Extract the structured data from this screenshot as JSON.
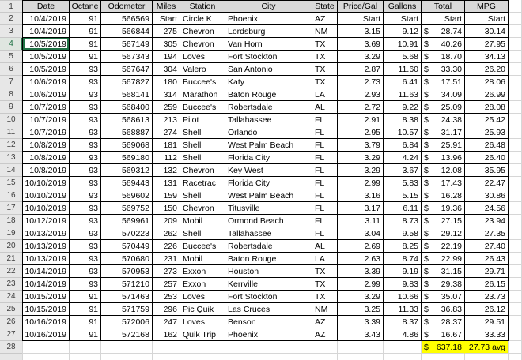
{
  "spreadsheet": {
    "selected": {
      "row": 4,
      "column": "date"
    },
    "visible_row_count": 28,
    "colors": {
      "highlight_fill": "#FFFF00",
      "selection_green": "#217346",
      "header_fill": "#D9D9D9",
      "chrome_fill": "#E7E7E7",
      "gridline": "#D6D6D6",
      "table_border": "#000000"
    },
    "row_numbers": [
      1,
      2,
      3,
      4,
      5,
      6,
      7,
      8,
      9,
      10,
      11,
      12,
      13,
      14,
      15,
      16,
      17,
      18,
      19,
      20,
      21,
      22,
      23,
      24,
      25,
      26,
      27,
      28
    ],
    "columns": [
      {
        "key": "date",
        "label": "Date"
      },
      {
        "key": "octane",
        "label": "Octane"
      },
      {
        "key": "odometer",
        "label": "Odometer"
      },
      {
        "key": "miles",
        "label": "Miles"
      },
      {
        "key": "station",
        "label": "Station"
      },
      {
        "key": "city",
        "label": "City"
      },
      {
        "key": "state",
        "label": "State"
      },
      {
        "key": "price_gal",
        "label": "Price/Gal"
      },
      {
        "key": "gallons",
        "label": "Gallons"
      },
      {
        "key": "total",
        "label": "Total"
      },
      {
        "key": "mpg",
        "label": "MPG"
      }
    ],
    "rows": [
      {
        "date": "10/4/2019",
        "octane": "91",
        "odometer": "566569",
        "miles": "Start",
        "station": "Circle K",
        "city": "Phoenix",
        "state": "AZ",
        "price_gal": "Start",
        "gallons": "Start",
        "currency": "",
        "total": "Start",
        "mpg": "Start"
      },
      {
        "date": "10/4/2019",
        "octane": "91",
        "odometer": "566844",
        "miles": "275",
        "station": "Chevron",
        "city": "Lordsburg",
        "state": "NM",
        "price_gal": "3.15",
        "gallons": "9.12",
        "currency": "$",
        "total": "28.74",
        "mpg": "30.14"
      },
      {
        "date": "10/5/2019",
        "octane": "91",
        "odometer": "567149",
        "miles": "305",
        "station": "Chevron",
        "city": "Van Horn",
        "state": "TX",
        "price_gal": "3.69",
        "gallons": "10.91",
        "currency": "$",
        "total": "40.26",
        "mpg": "27.95"
      },
      {
        "date": "10/5/2019",
        "octane": "91",
        "odometer": "567343",
        "miles": "194",
        "station": "Loves",
        "city": "Fort Stockton",
        "state": "TX",
        "price_gal": "3.29",
        "gallons": "5.68",
        "currency": "$",
        "total": "18.70",
        "mpg": "34.13"
      },
      {
        "date": "10/5/2019",
        "octane": "93",
        "odometer": "567647",
        "miles": "304",
        "station": "Valero",
        "city": "San Antonio",
        "state": "TX",
        "price_gal": "2.87",
        "gallons": "11.60",
        "currency": "$",
        "total": "33.30",
        "mpg": "26.20"
      },
      {
        "date": "10/6/2019",
        "octane": "93",
        "odometer": "567827",
        "miles": "180",
        "station": "Buccee's",
        "city": "Katy",
        "state": "TX",
        "price_gal": "2.73",
        "gallons": "6.41",
        "currency": "$",
        "total": "17.51",
        "mpg": "28.06"
      },
      {
        "date": "10/6/2019",
        "octane": "93",
        "odometer": "568141",
        "miles": "314",
        "station": "Marathon",
        "city": "Baton Rouge",
        "state": "LA",
        "price_gal": "2.93",
        "gallons": "11.63",
        "currency": "$",
        "total": "34.09",
        "mpg": "26.99"
      },
      {
        "date": "10/7/2019",
        "octane": "93",
        "odometer": "568400",
        "miles": "259",
        "station": "Buccee's",
        "city": "Robertsdale",
        "state": "AL",
        "price_gal": "2.72",
        "gallons": "9.22",
        "currency": "$",
        "total": "25.09",
        "mpg": "28.08"
      },
      {
        "date": "10/7/2019",
        "octane": "93",
        "odometer": "568613",
        "miles": "213",
        "station": "Pilot",
        "city": "Tallahassee",
        "state": "FL",
        "price_gal": "2.91",
        "gallons": "8.38",
        "currency": "$",
        "total": "24.38",
        "mpg": "25.42"
      },
      {
        "date": "10/7/2019",
        "octane": "93",
        "odometer": "568887",
        "miles": "274",
        "station": "Shell",
        "city": "Orlando",
        "state": "FL",
        "price_gal": "2.95",
        "gallons": "10.57",
        "currency": "$",
        "total": "31.17",
        "mpg": "25.93"
      },
      {
        "date": "10/8/2019",
        "octane": "93",
        "odometer": "569068",
        "miles": "181",
        "station": "Shell",
        "city": "West Palm Beach",
        "state": "FL",
        "price_gal": "3.79",
        "gallons": "6.84",
        "currency": "$",
        "total": "25.91",
        "mpg": "26.48"
      },
      {
        "date": "10/8/2019",
        "octane": "93",
        "odometer": "569180",
        "miles": "112",
        "station": "Shell",
        "city": "Florida City",
        "state": "FL",
        "price_gal": "3.29",
        "gallons": "4.24",
        "currency": "$",
        "total": "13.96",
        "mpg": "26.40"
      },
      {
        "date": "10/8/2019",
        "octane": "93",
        "odometer": "569312",
        "miles": "132",
        "station": "Chevron",
        "city": "Key West",
        "state": "FL",
        "price_gal": "3.29",
        "gallons": "3.67",
        "currency": "$",
        "total": "12.08",
        "mpg": "35.95"
      },
      {
        "date": "10/10/2019",
        "octane": "93",
        "odometer": "569443",
        "miles": "131",
        "station": "Racetrac",
        "city": "Florida City",
        "state": "FL",
        "price_gal": "2.99",
        "gallons": "5.83",
        "currency": "$",
        "total": "17.43",
        "mpg": "22.47"
      },
      {
        "date": "10/10/2019",
        "octane": "93",
        "odometer": "569602",
        "miles": "159",
        "station": "Shell",
        "city": "West Palm Beach",
        "state": "FL",
        "price_gal": "3.16",
        "gallons": "5.15",
        "currency": "$",
        "total": "16.28",
        "mpg": "30.86"
      },
      {
        "date": "10/10/2019",
        "octane": "93",
        "odometer": "569752",
        "miles": "150",
        "station": "Chevron",
        "city": "Titusville",
        "state": "FL",
        "price_gal": "3.17",
        "gallons": "6.11",
        "currency": "$",
        "total": "19.36",
        "mpg": "24.56"
      },
      {
        "date": "10/12/2019",
        "octane": "93",
        "odometer": "569961",
        "miles": "209",
        "station": "Mobil",
        "city": "Ormond Beach",
        "state": "FL",
        "price_gal": "3.11",
        "gallons": "8.73",
        "currency": "$",
        "total": "27.15",
        "mpg": "23.94"
      },
      {
        "date": "10/13/2019",
        "octane": "93",
        "odometer": "570223",
        "miles": "262",
        "station": "Shell",
        "city": "Tallahassee",
        "state": "FL",
        "price_gal": "3.04",
        "gallons": "9.58",
        "currency": "$",
        "total": "29.12",
        "mpg": "27.35"
      },
      {
        "date": "10/13/2019",
        "octane": "93",
        "odometer": "570449",
        "miles": "226",
        "station": "Buccee's",
        "city": "Robertsdale",
        "state": "AL",
        "price_gal": "2.69",
        "gallons": "8.25",
        "currency": "$",
        "total": "22.19",
        "mpg": "27.40"
      },
      {
        "date": "10/13/2019",
        "octane": "93",
        "odometer": "570680",
        "miles": "231",
        "station": "Mobil",
        "city": "Baton Rouge",
        "state": "LA",
        "price_gal": "2.63",
        "gallons": "8.74",
        "currency": "$",
        "total": "22.99",
        "mpg": "26.43"
      },
      {
        "date": "10/14/2019",
        "octane": "93",
        "odometer": "570953",
        "miles": "273",
        "station": "Exxon",
        "city": "Houston",
        "state": "TX",
        "price_gal": "3.39",
        "gallons": "9.19",
        "currency": "$",
        "total": "31.15",
        "mpg": "29.71"
      },
      {
        "date": "10/14/2019",
        "octane": "93",
        "odometer": "571210",
        "miles": "257",
        "station": "Exxon",
        "city": "Kerrville",
        "state": "TX",
        "price_gal": "2.99",
        "gallons": "9.83",
        "currency": "$",
        "total": "29.38",
        "mpg": "26.15"
      },
      {
        "date": "10/15/2019",
        "octane": "91",
        "odometer": "571463",
        "miles": "253",
        "station": "Loves",
        "city": "Fort Stockton",
        "state": "TX",
        "price_gal": "3.29",
        "gallons": "10.66",
        "currency": "$",
        "total": "35.07",
        "mpg": "23.73"
      },
      {
        "date": "10/15/2019",
        "octane": "91",
        "odometer": "571759",
        "miles": "296",
        "station": "Pic Quik",
        "city": "Las Cruces",
        "state": "NM",
        "price_gal": "3.25",
        "gallons": "11.33",
        "currency": "$",
        "total": "36.83",
        "mpg": "26.12"
      },
      {
        "date": "10/16/2019",
        "octane": "91",
        "odometer": "572006",
        "miles": "247",
        "station": "Loves",
        "city": "Benson",
        "state": "AZ",
        "price_gal": "3.39",
        "gallons": "8.37",
        "currency": "$",
        "total": "28.37",
        "mpg": "29.51"
      },
      {
        "date": "10/16/2019",
        "octane": "91",
        "odometer": "572168",
        "miles": "162",
        "station": "Quik Trip",
        "city": "Phoenix",
        "state": "AZ",
        "price_gal": "3.43",
        "gallons": "4.86",
        "currency": "$",
        "total": "16.67",
        "mpg": "33.33"
      }
    ],
    "summary": {
      "total_currency": "$",
      "total_value": "637.18",
      "mpg_text": "27.73 avg"
    }
  }
}
